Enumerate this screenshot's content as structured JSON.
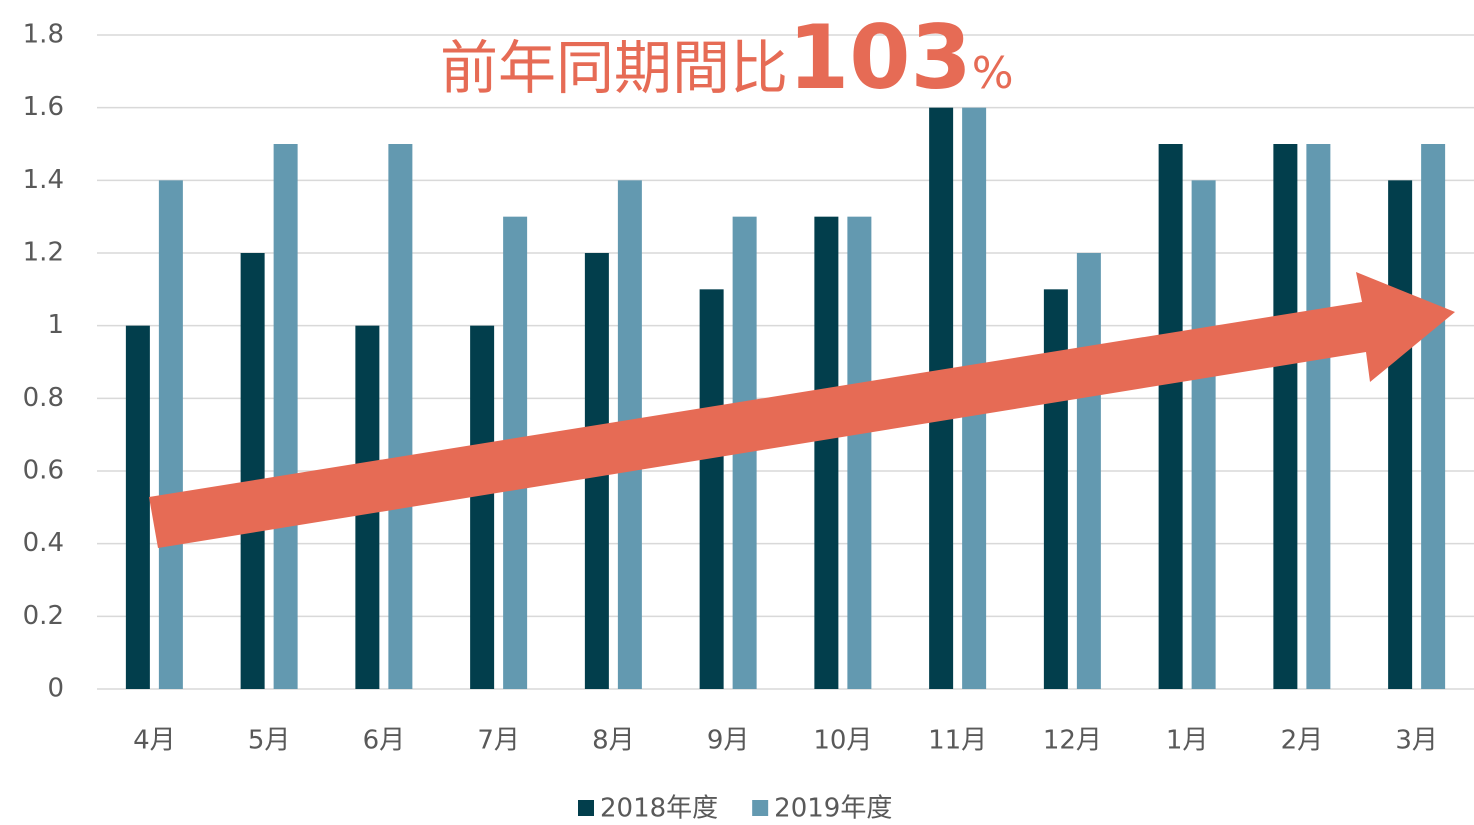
{
  "chart_data": {
    "type": "bar",
    "annotation": [
      "前年同期間比",
      "103",
      "%"
    ],
    "categories": [
      "4月",
      "5月",
      "6月",
      "7月",
      "8月",
      "9月",
      "10月",
      "11月",
      "12月",
      "1月",
      "2月",
      "3月"
    ],
    "series": [
      {
        "name": "2018年度",
        "color": "#023e4c",
        "values": [
          1.0,
          1.2,
          1.0,
          1.0,
          1.2,
          1.1,
          1.3,
          1.6,
          1.1,
          1.5,
          1.5,
          1.4
        ]
      },
      {
        "name": "2019年度",
        "color": "#6399b0",
        "values": [
          1.4,
          1.5,
          1.5,
          1.3,
          1.4,
          1.3,
          1.3,
          1.6,
          1.2,
          1.4,
          1.5,
          1.5
        ]
      }
    ],
    "ylim": [
      0,
      1.8
    ],
    "yticks": [
      0,
      0.2,
      0.4,
      0.6,
      0.8,
      1,
      1.2,
      1.4,
      1.6,
      1.8
    ],
    "grid": true,
    "legend": "bottom"
  }
}
